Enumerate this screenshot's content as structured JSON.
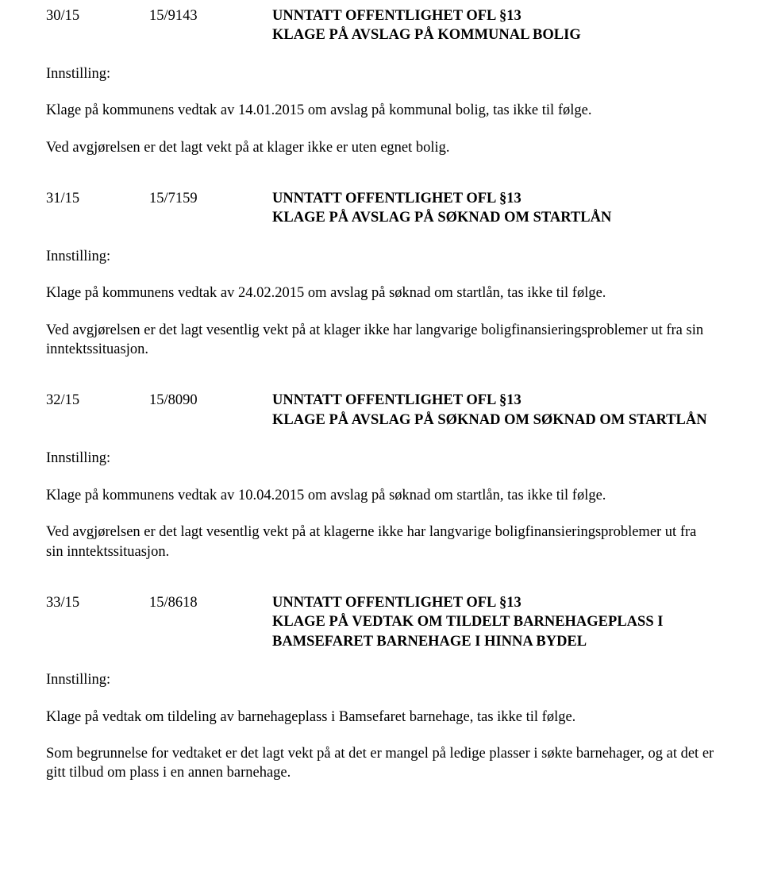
{
  "label_innstilling": "Innstilling:",
  "cases": [
    {
      "number": "30/15",
      "ref": "15/9143",
      "title": "UNNTATT OFFENTLIGHET OFL §13",
      "subtitle": "KLAGE PÅ AVSLAG PÅ KOMMUNAL BOLIG",
      "paragraphs": [
        "Klage på kommunens vedtak av 14.01.2015 om avslag på kommunal bolig, tas ikke til følge.",
        "Ved avgjørelsen er det lagt vekt på at klager ikke er uten egnet bolig."
      ]
    },
    {
      "number": "31/15",
      "ref": "15/7159",
      "title": "UNNTATT OFFENTLIGHET OFL §13",
      "subtitle": "KLAGE PÅ AVSLAG PÅ SØKNAD OM STARTLÅN",
      "paragraphs": [
        "Klage på kommunens vedtak av 24.02.2015 om avslag på søknad om startlån, tas ikke til følge.",
        "Ved avgjørelsen er det lagt vesentlig vekt på at klager ikke har langvarige boligfinansieringsproblemer ut fra sin inntektssituasjon."
      ]
    },
    {
      "number": "32/15",
      "ref": "15/8090",
      "title": "UNNTATT OFFENTLIGHET OFL §13",
      "subtitle": "KLAGE PÅ AVSLAG PÅ SØKNAD OM SØKNAD OM STARTLÅN",
      "paragraphs": [
        "Klage på kommunens vedtak av 10.04.2015 om avslag på søknad om startlån, tas ikke til følge.",
        "Ved avgjørelsen er det lagt vesentlig vekt på at klagerne ikke har langvarige boligfinansieringsproblemer ut fra sin inntektssituasjon."
      ]
    },
    {
      "number": "33/15",
      "ref": "15/8618",
      "title": "UNNTATT OFFENTLIGHET OFL §13",
      "subtitle": "KLAGE PÅ VEDTAK OM TILDELT BARNEHAGEPLASS I BAMSEFARET BARNEHAGE I HINNA BYDEL",
      "paragraphs": [
        "Klage på vedtak om tildeling av barnehageplass i Bamsefaret barnehage, tas ikke til følge.",
        "Som begrunnelse for vedtaket er det lagt vekt på at det er mangel på ledige plasser i søkte barnehager, og at det er gitt tilbud om plass i en annen barnehage."
      ]
    }
  ]
}
